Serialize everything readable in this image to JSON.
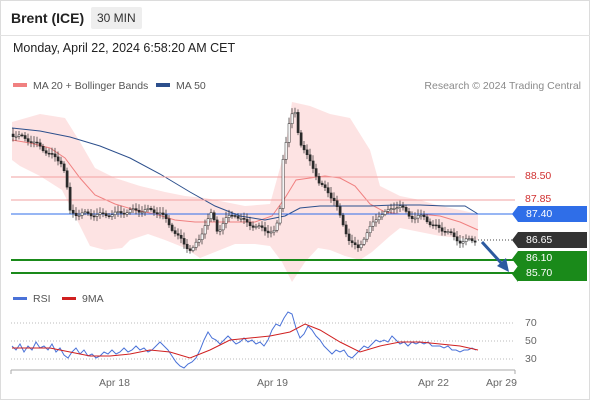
{
  "header": {
    "title": "Brent (ICE)",
    "timeframe": "30 MIN"
  },
  "timestamp": "Monday, April 22, 2024 6:58:20 AM CET",
  "legend": {
    "bollinger_label": "MA 20 + Bollinger Bands",
    "ma50_label": "MA 50",
    "bollinger_color": "#f08080",
    "ma50_color": "#2c4f8c"
  },
  "credit": "Research © 2024 Trading Central",
  "chart_data": {
    "type": "candlestick",
    "price_levels": {
      "resistance": [
        "88.50",
        "87.85"
      ],
      "pivot": "87.40",
      "last": "86.65",
      "support": [
        "86.10",
        "85.70"
      ]
    },
    "pivot_color": "#2f6ee8",
    "support_color": "#1a8a1a",
    "resistance_color": "#d03030",
    "last_color": "#333333",
    "x_ticks": [
      "Apr 18",
      "Apr 19",
      "Apr 22",
      "Apr 29"
    ]
  },
  "rsi": {
    "legend_rsi": "RSI",
    "legend_ma": "9MA",
    "rsi_color": "#4a72d8",
    "ma_color": "#d02020",
    "levels": [
      "70",
      "50",
      "30"
    ]
  }
}
